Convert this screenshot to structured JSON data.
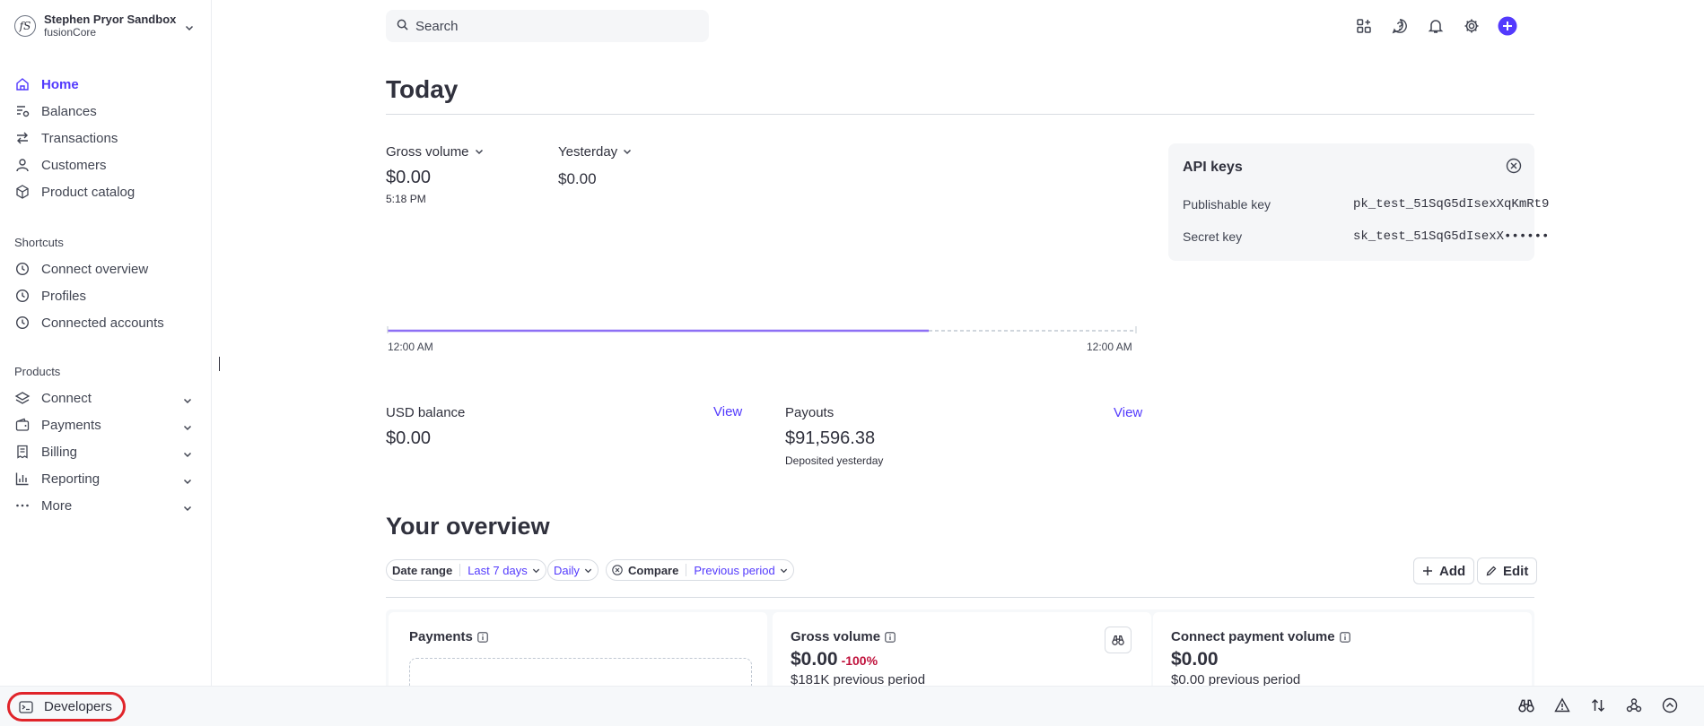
{
  "account": {
    "name": "Stephen Pryor Sandbox",
    "sub": "fusionCore",
    "logo": "fS"
  },
  "nav": [
    {
      "label": "Home",
      "icon": "home-icon"
    },
    {
      "label": "Balances",
      "icon": "balances-icon"
    },
    {
      "label": "Transactions",
      "icon": "arrows-icon"
    },
    {
      "label": "Customers",
      "icon": "person-icon"
    },
    {
      "label": "Product catalog",
      "icon": "box-icon"
    }
  ],
  "shortcuts": {
    "heading": "Shortcuts",
    "items": [
      {
        "label": "Connect overview"
      },
      {
        "label": "Profiles"
      },
      {
        "label": "Connected accounts"
      }
    ]
  },
  "products": {
    "heading": "Products",
    "items": [
      {
        "label": "Connect"
      },
      {
        "label": "Payments"
      },
      {
        "label": "Billing"
      },
      {
        "label": "Reporting"
      },
      {
        "label": "More"
      }
    ]
  },
  "search": {
    "placeholder": "Search"
  },
  "today": {
    "title": "Today",
    "gross_volume_label": "Gross volume",
    "gross_volume_value": "$0.00",
    "gross_volume_time": "5:18 PM",
    "yesterday_label": "Yesterday",
    "yesterday_value": "$0.00",
    "chart_start": "12:00 AM",
    "chart_end": "12:00 AM"
  },
  "api_keys": {
    "title": "API keys",
    "publishable_label": "Publishable key",
    "publishable_value": "pk_test_51SqG5dIsexXqKmRt9",
    "secret_label": "Secret key",
    "secret_value": "sk_test_51SqG5dIsexX••••••"
  },
  "balance": {
    "usd_label": "USD balance",
    "usd_value": "$0.00",
    "usd_link": "View",
    "payouts_label": "Payouts",
    "payouts_value": "$91,596.38",
    "payouts_caption": "Deposited yesterday",
    "payouts_link": "View"
  },
  "overview": {
    "title": "Your overview",
    "date_range_key": "Date range",
    "date_range_value": "Last 7 days",
    "interval": "Daily",
    "compare_key": "Compare",
    "compare_value": "Previous period",
    "add_label": "Add",
    "edit_label": "Edit"
  },
  "cards": [
    {
      "title": "Payments"
    },
    {
      "title": "Gross volume",
      "value": "$0.00",
      "delta": "-100%",
      "sub": "$181K previous period"
    },
    {
      "title": "Connect payment volume",
      "value": "$0.00",
      "sub": "$0.00 previous period"
    }
  ],
  "bottom": {
    "developers_label": "Developers"
  },
  "colors": {
    "accent": "#533afd",
    "negative": "#c0123c",
    "highlight": "#e0242a"
  }
}
